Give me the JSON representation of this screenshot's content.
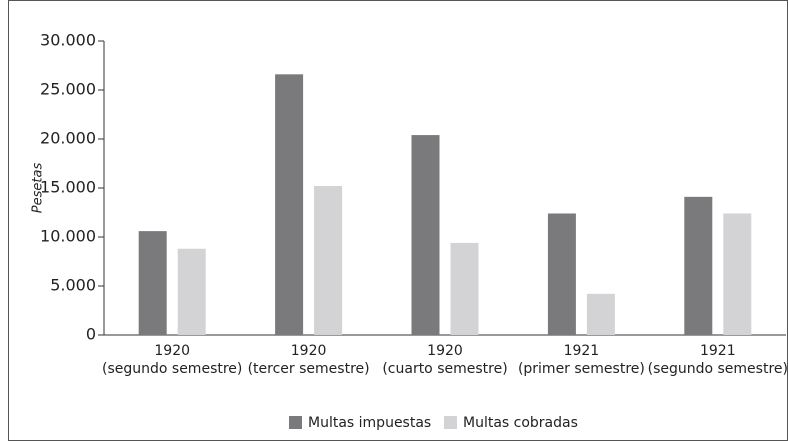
{
  "chart_data": {
    "type": "bar",
    "y_label": "Pesetas",
    "categories": [
      [
        "1920",
        "(segundo semestre)"
      ],
      [
        "1920",
        "(tercer semestre)"
      ],
      [
        "1920",
        "(cuarto semestre)"
      ],
      [
        "1921",
        "(primer semestre)"
      ],
      [
        "1921",
        "(segundo semestre)"
      ]
    ],
    "series": [
      {
        "name": "Multas impuestas",
        "color": "#7a7a7c",
        "values": [
          10600,
          26600,
          20400,
          12400,
          14100
        ]
      },
      {
        "name": "Multas cobradas",
        "color": "#d3d3d5",
        "values": [
          8800,
          15200,
          9400,
          4200,
          12400
        ]
      }
    ],
    "ylim": [
      0,
      30000
    ],
    "yticks": [
      0,
      {
        "value": 5000,
        "label": "5.000"
      },
      {
        "value": 10000,
        "label": "10.000"
      },
      {
        "value": 15000,
        "label": "15.000"
      },
      {
        "value": 20000,
        "label": "20.000"
      },
      {
        "value": 25000,
        "label": "25.000"
      },
      {
        "value": 30000,
        "label": "30.000"
      }
    ],
    "grid": false,
    "legend": "bottom"
  }
}
